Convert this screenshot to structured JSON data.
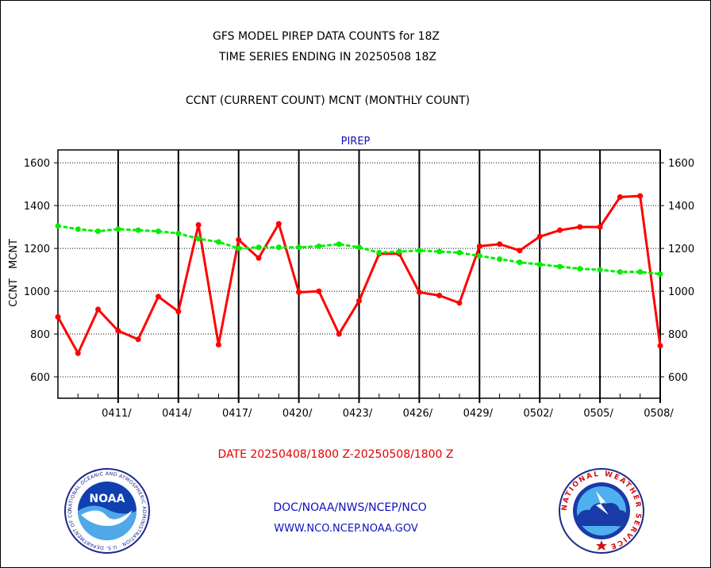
{
  "header": {
    "line1": "GFS MODEL PIREP DATA COUNTS for 18Z",
    "line2": "TIME SERIES ENDING IN 20250508 18Z",
    "line3": "CCNT (CURRENT COUNT) MCNT (MONTHLY COUNT)"
  },
  "footer": {
    "date_range": "DATE 20250408/1800 Z-20250508/1800 Z",
    "org": "DOC/NOAA/NWS/NCEP/NCO",
    "url": "WWW.NCO.NCEP.NOAA.GOV"
  },
  "logos": {
    "noaa_text": "NOAA",
    "noaa_ring_text": "NATIONAL OCEANIC AND ATMOSPHERIC ADMINISTRATION · U.S. DEPARTMENT OF COMMERCE ·",
    "nws_ring_text": "NATIONAL WEATHER SERVICE ·"
  },
  "colors": {
    "ccnt": "#ff0000",
    "mcnt": "#00ee00",
    "title": "#1010c0",
    "date": "#e00000"
  },
  "chart_data": {
    "type": "line",
    "title": "PIREP",
    "ylabel_parts": [
      {
        "text": "CCNT",
        "color": "#ff0000"
      },
      {
        "text": "MCNT",
        "color": "#00cc00"
      }
    ],
    "ylim": [
      500,
      1660
    ],
    "yticks": [
      600,
      800,
      1000,
      1200,
      1400,
      1600
    ],
    "xlim": [
      0,
      30
    ],
    "xticks": [
      {
        "label": "0411/",
        "day": 3
      },
      {
        "label": "0414/",
        "day": 6
      },
      {
        "label": "0417/",
        "day": 9
      },
      {
        "label": "0420/",
        "day": 12
      },
      {
        "label": "0423/",
        "day": 15
      },
      {
        "label": "0426/",
        "day": 18
      },
      {
        "label": "0429/",
        "day": 21
      },
      {
        "label": "0502/",
        "day": 24
      },
      {
        "label": "0505/",
        "day": 27
      },
      {
        "label": "0508/",
        "day": 30
      }
    ],
    "grid": true,
    "series": [
      {
        "name": "CCNT",
        "color": "#ff0000",
        "x": [
          0,
          1,
          2,
          3,
          4,
          5,
          6,
          7,
          8,
          9,
          10,
          11,
          12,
          13,
          14,
          15,
          16,
          17,
          18,
          19,
          20,
          21,
          22,
          23,
          24,
          25,
          26,
          27,
          28,
          29,
          30
        ],
        "values": [
          880,
          710,
          915,
          815,
          775,
          975,
          905,
          1310,
          750,
          1240,
          1155,
          1315,
          995,
          1000,
          800,
          955,
          1175,
          1175,
          995,
          980,
          945,
          1210,
          1220,
          1190,
          1255,
          1285,
          1300,
          1300,
          1440,
          1445,
          745
        ]
      },
      {
        "name": "MCNT",
        "color": "#00ee00",
        "x": [
          0,
          1,
          2,
          3,
          4,
          5,
          6,
          7,
          8,
          9,
          10,
          11,
          12,
          13,
          14,
          15,
          16,
          17,
          18,
          19,
          20,
          21,
          22,
          23,
          24,
          25,
          26,
          27,
          28,
          29,
          30
        ],
        "values": [
          1305,
          1290,
          1280,
          1290,
          1285,
          1280,
          1270,
          1245,
          1230,
          1200,
          1205,
          1205,
          1205,
          1210,
          1220,
          1205,
          1180,
          1185,
          1190,
          1185,
          1180,
          1165,
          1150,
          1135,
          1125,
          1115,
          1105,
          1100,
          1090,
          1090,
          1080
        ]
      }
    ]
  }
}
